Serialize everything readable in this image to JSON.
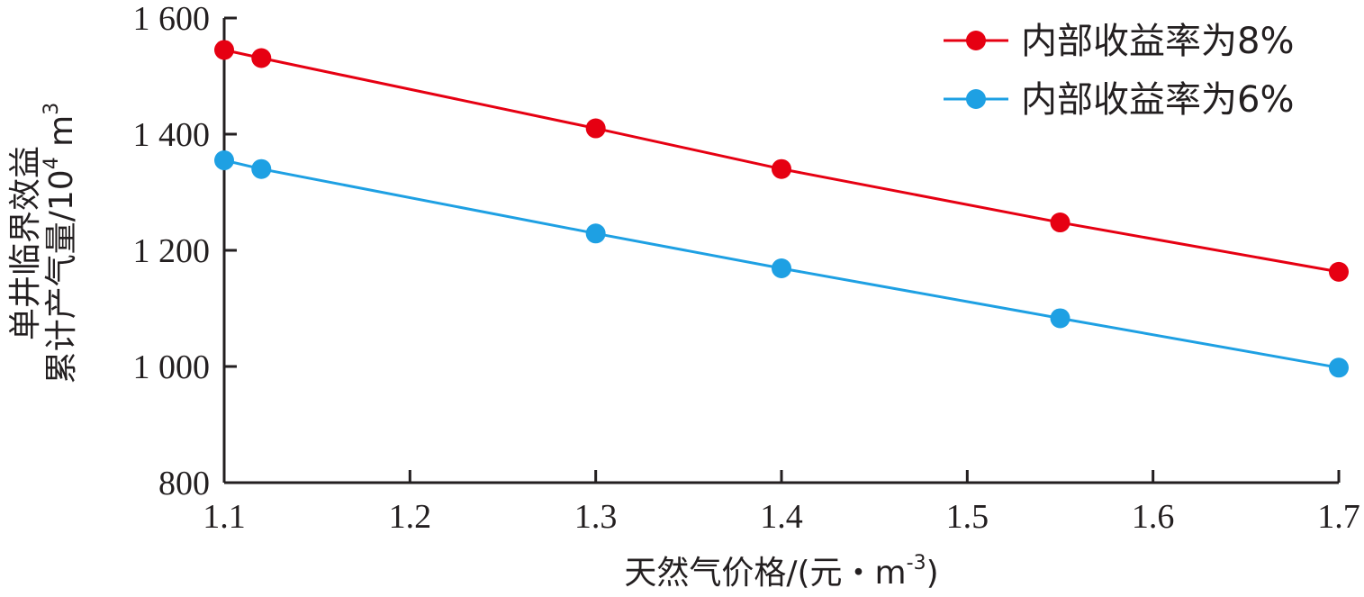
{
  "chart_data": {
    "type": "line",
    "xlabel": "天然气价格/(元・m",
    "xlabel_sup": "-3",
    "xlabel_end": ")",
    "ylabel_line1": "单井临界效益",
    "ylabel_line2": "累计产气量/10",
    "ylabel_sup1": "4",
    "ylabel_unit": " m",
    "ylabel_sup2": "3",
    "xlim": [
      1.1,
      1.7
    ],
    "ylim": [
      800,
      1600
    ],
    "xticks": [
      "1.1",
      "1.2",
      "1.3",
      "1.4",
      "1.5",
      "1.6",
      "1.7"
    ],
    "yticks": [
      "800",
      "1 000",
      "1 200",
      "1 400",
      "1 600"
    ],
    "grid": false,
    "legend_position": "top-right",
    "series": [
      {
        "name": "内部收益率为8%",
        "color": "#e60012",
        "x": [
          1.1,
          1.12,
          1.3,
          1.4,
          1.55,
          1.7
        ],
        "values": [
          1545,
          1531,
          1410,
          1340,
          1248,
          1163
        ]
      },
      {
        "name": "内部收益率为6%",
        "color": "#1ea0e3",
        "x": [
          1.1,
          1.12,
          1.3,
          1.4,
          1.55,
          1.7
        ],
        "values": [
          1355,
          1340,
          1229,
          1169,
          1083,
          998
        ]
      }
    ]
  }
}
